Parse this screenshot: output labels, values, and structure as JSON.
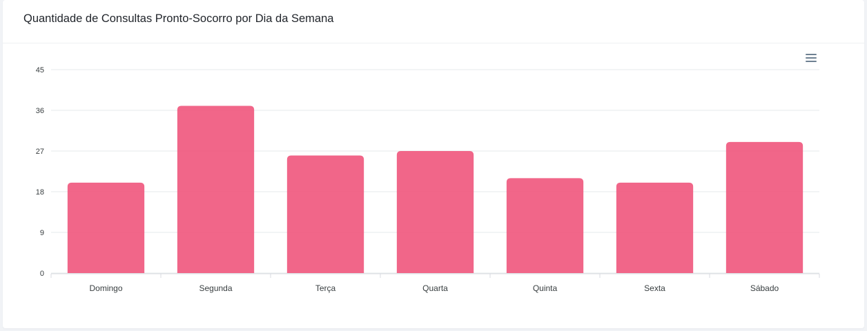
{
  "card": {
    "title": "Quantidade de Consultas Pronto-Socorro por Dia da Semana"
  },
  "toolbar": {
    "menu_icon": "hamburger-menu-icon"
  },
  "colors": {
    "bar": "#f0557c",
    "grid": "#e6e8eb",
    "axis": "#d8dbe0"
  },
  "chart_data": {
    "type": "bar",
    "title": "Quantidade de Consultas Pronto-Socorro por Dia da Semana",
    "categories": [
      "Domingo",
      "Segunda",
      "Terça",
      "Quarta",
      "Quinta",
      "Sexta",
      "Sábado"
    ],
    "values": [
      20,
      37,
      26,
      27,
      21,
      20,
      29
    ],
    "xlabel": "",
    "ylabel": "",
    "ylim": [
      0,
      45
    ],
    "yticks": [
      "0",
      "9",
      "18",
      "27",
      "36",
      "45"
    ],
    "grid": true,
    "legend": "none"
  }
}
